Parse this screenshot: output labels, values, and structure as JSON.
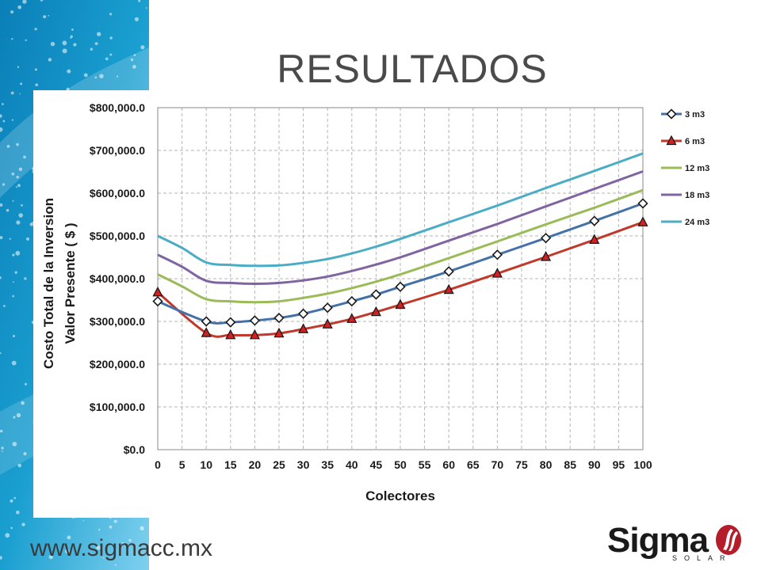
{
  "slide": {
    "title": "RESULTADOS",
    "footer_url": "www.sigmacc.mx",
    "logo_text": "Sigma",
    "logo_sub": "SOLAR"
  },
  "colors": {
    "accent_teal": "#1a9fd0",
    "series": [
      "#4472a8",
      "#c0392b",
      "#9bbb59",
      "#8064a2",
      "#4bacc6"
    ]
  },
  "chart_data": {
    "type": "line",
    "xlabel": "Colectores",
    "ylabel_line1": "Costo Total de la Inversion",
    "ylabel_line2": "Valor Presente ( $ )",
    "x_ticks": [
      0,
      5,
      10,
      15,
      20,
      25,
      30,
      35,
      40,
      45,
      50,
      55,
      60,
      65,
      70,
      75,
      80,
      85,
      90,
      95,
      100
    ],
    "y_ticks": [
      "$0.0",
      "$100,000.0",
      "$200,000.0",
      "$300,000.0",
      "$400,000.0",
      "$500,000.0",
      "$600,000.0",
      "$700,000.0",
      "$800,000.0"
    ],
    "xlim": [
      0,
      100
    ],
    "ylim": [
      0,
      800000
    ],
    "grid": true,
    "legend_position": "right",
    "series": [
      {
        "name": "3 m3",
        "marker": "diamond",
        "x": [
          0,
          10,
          15,
          20,
          25,
          30,
          35,
          40,
          45,
          50,
          60,
          70,
          80,
          90,
          100
        ],
        "values": [
          347000,
          300000,
          298000,
          302000,
          308000,
          318000,
          332000,
          347000,
          363000,
          381000,
          417000,
          456000,
          495000,
          535000,
          576000
        ]
      },
      {
        "name": "6 m3",
        "marker": "triangle",
        "x": [
          0,
          10,
          15,
          20,
          25,
          30,
          35,
          40,
          45,
          50,
          60,
          70,
          80,
          90,
          100
        ],
        "values": [
          368000,
          273000,
          268000,
          268000,
          272000,
          282000,
          293000,
          306000,
          322000,
          339000,
          374000,
          412000,
          451000,
          491000,
          532000
        ]
      },
      {
        "name": "12 m3",
        "marker": "none",
        "x": [
          0,
          5,
          10,
          15,
          20,
          25,
          30,
          35,
          40,
          45,
          50,
          60,
          70,
          80,
          90,
          100
        ],
        "values": [
          410000,
          382000,
          352000,
          347000,
          345000,
          347000,
          355000,
          365000,
          378000,
          393000,
          410000,
          448000,
          487000,
          527000,
          566000,
          607000
        ]
      },
      {
        "name": "18 m3",
        "marker": "none",
        "x": [
          0,
          5,
          10,
          15,
          20,
          25,
          30,
          35,
          40,
          45,
          50,
          60,
          70,
          80,
          90,
          100
        ],
        "values": [
          456000,
          428000,
          395000,
          390000,
          388000,
          390000,
          396000,
          405000,
          418000,
          433000,
          450000,
          489000,
          528000,
          569000,
          610000,
          651000
        ]
      },
      {
        "name": "24 m3",
        "marker": "none",
        "x": [
          0,
          5,
          10,
          15,
          20,
          25,
          30,
          35,
          40,
          45,
          50,
          60,
          70,
          80,
          90,
          100
        ],
        "values": [
          500000,
          472000,
          438000,
          432000,
          430000,
          431000,
          437000,
          446000,
          459000,
          475000,
          493000,
          532000,
          571000,
          612000,
          652000,
          693000
        ]
      }
    ]
  }
}
